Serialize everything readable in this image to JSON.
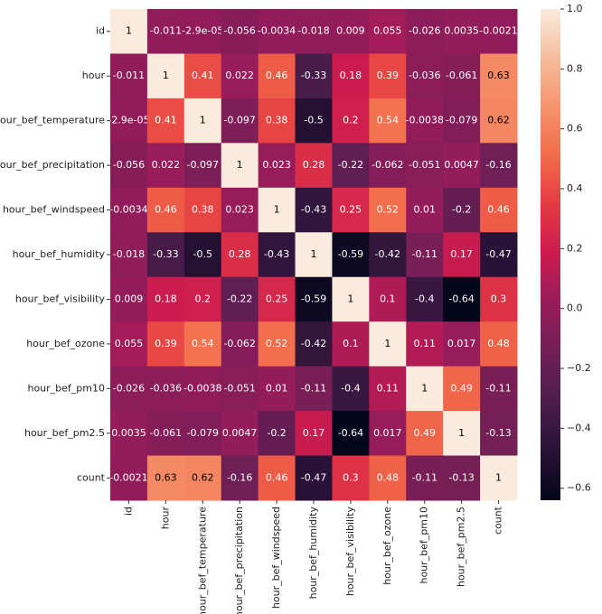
{
  "chart_data": {
    "type": "heatmap",
    "categories": [
      "id",
      "hour",
      "hour_bef_temperature",
      "hour_bef_precipitation",
      "hour_bef_windspeed",
      "hour_bef_humidity",
      "hour_bef_visibility",
      "hour_bef_ozone",
      "hour_bef_pm10",
      "hour_bef_pm2.5",
      "count"
    ],
    "values": [
      [
        1,
        -0.011,
        -2.9e-05,
        -0.056,
        -0.0034,
        -0.018,
        0.009,
        0.055,
        -0.026,
        0.0035,
        -0.0021
      ],
      [
        -0.011,
        1,
        0.41,
        0.022,
        0.46,
        -0.33,
        0.18,
        0.39,
        -0.036,
        -0.061,
        0.63
      ],
      [
        -2.9e-05,
        0.41,
        1,
        -0.097,
        0.38,
        -0.5,
        0.2,
        0.54,
        -0.0038,
        -0.079,
        0.62
      ],
      [
        -0.056,
        0.022,
        -0.097,
        1,
        0.023,
        0.28,
        -0.22,
        -0.062,
        -0.051,
        0.0047,
        -0.16
      ],
      [
        -0.0034,
        0.46,
        0.38,
        0.023,
        1,
        -0.43,
        0.25,
        0.52,
        0.01,
        -0.2,
        0.46
      ],
      [
        -0.018,
        -0.33,
        -0.5,
        0.28,
        -0.43,
        1,
        -0.59,
        -0.42,
        -0.11,
        0.17,
        -0.47
      ],
      [
        0.009,
        0.18,
        0.2,
        -0.22,
        0.25,
        -0.59,
        1,
        0.1,
        -0.4,
        -0.64,
        0.3
      ],
      [
        0.055,
        0.39,
        0.54,
        -0.062,
        0.52,
        -0.42,
        0.1,
        1,
        0.11,
        0.017,
        0.48
      ],
      [
        -0.026,
        -0.036,
        -0.0038,
        -0.051,
        0.01,
        -0.11,
        -0.4,
        0.11,
        1,
        0.49,
        -0.11
      ],
      [
        0.0035,
        -0.061,
        -0.079,
        0.0047,
        -0.2,
        0.17,
        -0.64,
        0.017,
        0.49,
        1,
        -0.13
      ],
      [
        -0.0021,
        0.63,
        0.62,
        -0.16,
        0.46,
        -0.47,
        0.3,
        0.48,
        -0.11,
        -0.13,
        1
      ]
    ],
    "value_labels": [
      [
        "1",
        "-0.011",
        "-2.9e-05",
        "-0.056",
        "-0.0034",
        "-0.018",
        "0.009",
        "0.055",
        "-0.026",
        "0.0035",
        "-0.0021"
      ],
      [
        "-0.011",
        "1",
        "0.41",
        "0.022",
        "0.46",
        "-0.33",
        "0.18",
        "0.39",
        "-0.036",
        "-0.061",
        "0.63"
      ],
      [
        "-2.9e-05",
        "0.41",
        "1",
        "-0.097",
        "0.38",
        "-0.5",
        "0.2",
        "0.54",
        "-0.0038",
        "-0.079",
        "0.62"
      ],
      [
        "-0.056",
        "0.022",
        "-0.097",
        "1",
        "0.023",
        "0.28",
        "-0.22",
        "-0.062",
        "-0.051",
        "0.0047",
        "-0.16"
      ],
      [
        "-0.0034",
        "0.46",
        "0.38",
        "0.023",
        "1",
        "-0.43",
        "0.25",
        "0.52",
        "0.01",
        "-0.2",
        "0.46"
      ],
      [
        "-0.018",
        "-0.33",
        "-0.5",
        "0.28",
        "-0.43",
        "1",
        "-0.59",
        "-0.42",
        "-0.11",
        "0.17",
        "-0.47"
      ],
      [
        "0.009",
        "0.18",
        "0.2",
        "-0.22",
        "0.25",
        "-0.59",
        "1",
        "0.1",
        "-0.4",
        "-0.64",
        "0.3"
      ],
      [
        "0.055",
        "0.39",
        "0.54",
        "-0.062",
        "0.52",
        "-0.42",
        "0.1",
        "1",
        "0.11",
        "0.017",
        "0.48"
      ],
      [
        "-0.026",
        "-0.036",
        "-0.0038",
        "-0.051",
        "0.01",
        "-0.11",
        "-0.4",
        "0.11",
        "1",
        "0.49",
        "-0.11"
      ],
      [
        "0.0035",
        "-0.061",
        "-0.079",
        "0.0047",
        "-0.2",
        "0.17",
        "-0.64",
        "0.017",
        "0.49",
        "1",
        "-0.13"
      ],
      [
        "-0.0021",
        "0.63",
        "0.62",
        "-0.16",
        "0.46",
        "-0.47",
        "0.3",
        "0.48",
        "-0.11",
        "-0.13",
        "1"
      ]
    ],
    "clim": [
      -0.64,
      1
    ],
    "cticks": [
      {
        "value": -0.6,
        "label": "−0.6"
      },
      {
        "value": -0.4,
        "label": "−0.4"
      },
      {
        "value": -0.2,
        "label": "−0.2"
      },
      {
        "value": 0,
        "label": "0.0"
      },
      0.2,
      0.4,
      0.6,
      0.8,
      {
        "value": 1,
        "label": "1.0"
      }
    ],
    "colormap": "rocket"
  }
}
